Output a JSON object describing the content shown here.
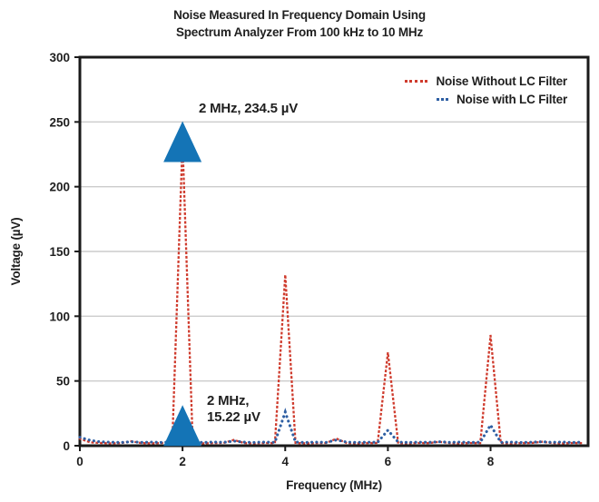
{
  "chart_data": {
    "type": "line",
    "title": "Noise Measured In Frequency Domain Using Spectrum Analyzer From 100 kHz to 10 MHz",
    "title_lines": [
      "Noise Measured In Frequency Domain Using",
      "Spectrum Analyzer From 100 kHz to 10 MHz"
    ],
    "xlabel": "Frequency (MHz)",
    "ylabel": "Voltage (µV)",
    "xlim": [
      0,
      9.9
    ],
    "ylim": [
      0,
      300
    ],
    "x_ticks": [
      0,
      2,
      4,
      6,
      8
    ],
    "y_ticks": [
      0,
      50,
      100,
      150,
      200,
      250,
      300
    ],
    "grid": "horizontal-light",
    "legend_position": "top-right-inside",
    "x": [
      0,
      0.2,
      0.4,
      0.6,
      0.8,
      1.0,
      1.2,
      1.4,
      1.6,
      1.8,
      2.0,
      2.2,
      2.4,
      2.6,
      2.8,
      3.0,
      3.2,
      3.4,
      3.6,
      3.8,
      4.0,
      4.2,
      4.4,
      4.6,
      4.8,
      5.0,
      5.2,
      5.4,
      5.6,
      5.8,
      6.0,
      6.2,
      6.4,
      6.6,
      6.8,
      7.0,
      7.2,
      7.4,
      7.6,
      7.8,
      8.0,
      8.2,
      8.4,
      8.6,
      8.8,
      9.0,
      9.2,
      9.4,
      9.6,
      9.8
    ],
    "series": [
      {
        "name": "Noise Without LC Filter",
        "color": "#cf3b2d",
        "line_style": "dotted",
        "values": [
          5.5,
          2.6,
          2.1,
          1.8,
          2.0,
          3.4,
          2.0,
          1.8,
          2.1,
          2.0,
          234.5,
          2.1,
          1.8,
          2.0,
          2.1,
          4.5,
          2.0,
          1.8,
          2.1,
          2.0,
          132,
          2.1,
          1.8,
          2.0,
          2.1,
          5.5,
          2.0,
          1.8,
          2.0,
          2.1,
          72,
          2.0,
          1.8,
          2.1,
          2.0,
          3.0,
          2.0,
          1.8,
          2.1,
          2.0,
          85,
          2.1,
          1.8,
          2.0,
          2.1,
          3.0,
          2.0,
          1.8,
          2.1,
          2.0
        ]
      },
      {
        "name": "Noise with LC Filter",
        "color": "#2e5fa3",
        "line_style": "dotted",
        "values": [
          6.5,
          4.2,
          3.0,
          2.7,
          2.5,
          3.1,
          2.6,
          2.8,
          2.5,
          2.9,
          15.22,
          2.8,
          2.5,
          2.8,
          2.6,
          3.6,
          2.7,
          2.5,
          2.8,
          2.6,
          26,
          2.8,
          2.5,
          2.7,
          2.6,
          4.4,
          2.8,
          2.5,
          2.7,
          2.6,
          12,
          2.8,
          2.5,
          2.7,
          2.6,
          3.1,
          2.6,
          2.8,
          2.5,
          2.7,
          16,
          2.6,
          2.8,
          2.5,
          2.7,
          3.1,
          2.6,
          2.8,
          2.5,
          2.7
        ]
      }
    ],
    "peaks": {
      "without_filter_uV": [
        [
          2,
          234.5
        ],
        [
          4,
          132
        ],
        [
          6,
          72
        ],
        [
          8,
          85
        ]
      ],
      "with_filter_uV": [
        [
          2,
          15.22
        ],
        [
          4,
          26
        ],
        [
          6,
          12
        ],
        [
          8,
          16
        ]
      ]
    },
    "annotations": [
      {
        "text": "2 MHz, 234.5 µV",
        "x_mhz": 2,
        "y_uv": 234.5,
        "marker": "triangle-up",
        "marker_color": "#1474b6"
      },
      {
        "text_lines": [
          "2 MHz,",
          "15.22 µV"
        ],
        "x_mhz": 2,
        "y_uv": 15.22,
        "marker": "triangle-up",
        "marker_color": "#1474b6"
      }
    ],
    "colors": {
      "grid": "#cccccc",
      "frame": "#1a1a1a",
      "text": "#1f1f1f"
    }
  }
}
